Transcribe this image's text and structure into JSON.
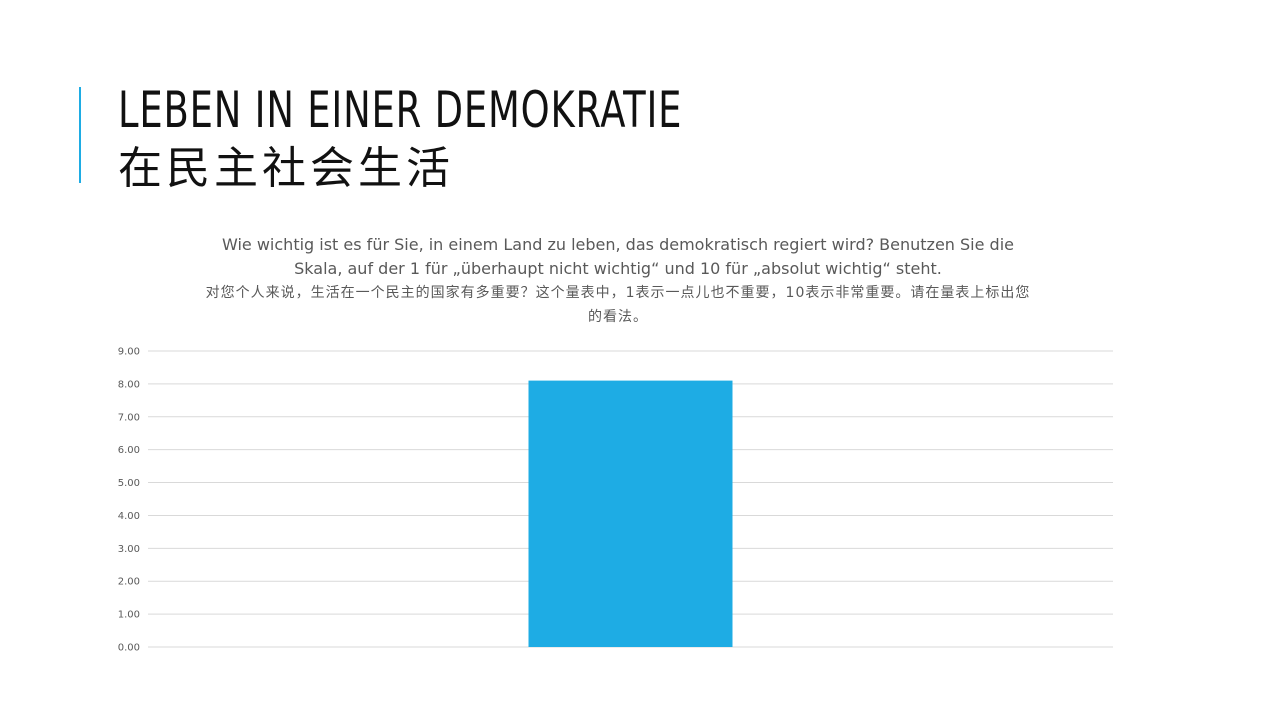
{
  "slide": {
    "title_de": "LEBEN IN EINER DEMOKRATIE",
    "title_zh": "在民主社会生活",
    "accent_color": "#1EACE4"
  },
  "chart_data": {
    "type": "bar",
    "title_de": "Wie wichtig ist es für Sie, in einem Land zu leben, das demokratisch regiert wird? Benutzen Sie die Skala, auf der 1 für „überhaupt nicht wichtig“ und 10 für „absolut wichtig“ steht.",
    "title_zh": "对您个人来说，生活在一个民主的国家有多重要？这个量表中，1表示一点儿也不重要，10表示非常重要。请在量表上标出您的看法。",
    "categories": [
      ""
    ],
    "values": [
      8.1
    ],
    "ylim": [
      0,
      9
    ],
    "yticks": [
      "0.00",
      "1.00",
      "2.00",
      "3.00",
      "4.00",
      "5.00",
      "6.00",
      "7.00",
      "8.00",
      "9.00"
    ],
    "grid": true,
    "bar_color": "#1EACE4"
  }
}
